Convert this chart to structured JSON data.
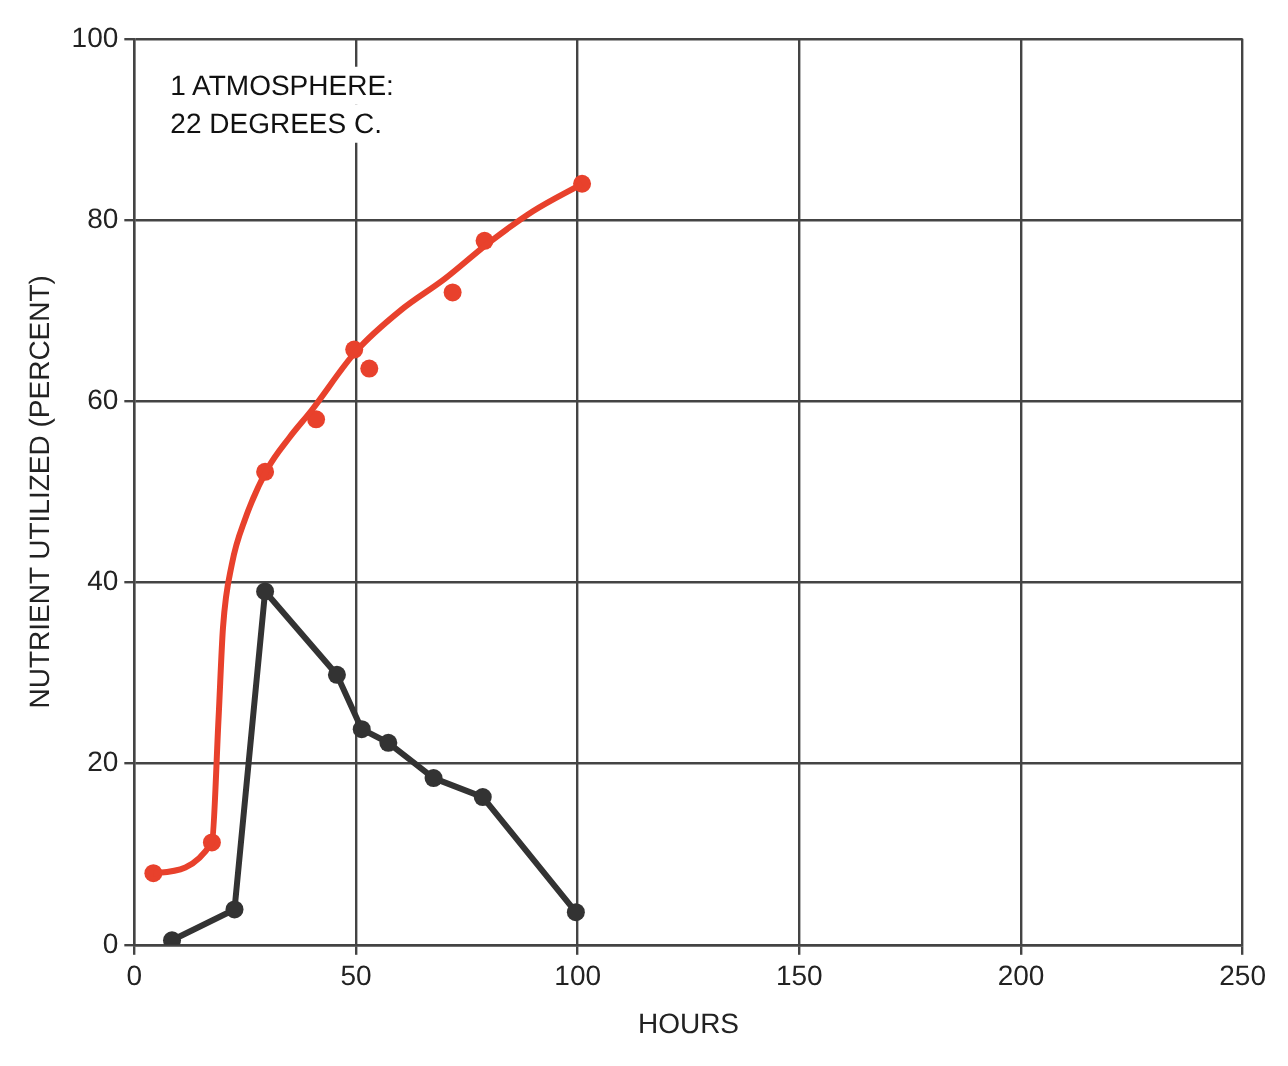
{
  "chart_data": {
    "type": "line",
    "xlabel": "HOURS",
    "ylabel": "NUTRIENT UTILIZED (PERCENT)",
    "annotations": [
      "1 ATMOSPHERE:",
      "22 DEGREES C."
    ],
    "xlim": [
      0,
      250
    ],
    "xticks": [
      0,
      50,
      100,
      150,
      200,
      250
    ],
    "ylim": [
      0,
      100
    ],
    "yticks": [
      0,
      20,
      40,
      60,
      80,
      100
    ],
    "grid": true,
    "legend": false,
    "marker": "circle",
    "line_style": "solid",
    "series": [
      {
        "type": "line",
        "color": "#e8412c",
        "marker": "none",
        "x": [
          4.3,
          17.5,
          19,
          20,
          22,
          25,
          30,
          35,
          40,
          50,
          60,
          70,
          80,
          90,
          101
        ],
        "values": [
          7.9,
          11.3,
          25,
          35,
          42,
          47,
          52.5,
          56,
          59,
          65.5,
          70,
          73.5,
          77.5,
          81,
          84
        ]
      },
      {
        "type": "scatter",
        "color": "#e8412c",
        "x": [
          4.3,
          17.5,
          29.5,
          41,
          49.6,
          53,
          71.8,
          79,
          101
        ],
        "values": [
          7.9,
          11.3,
          52.2,
          58,
          65.7,
          63.6,
          72,
          77.7,
          84
        ]
      },
      {
        "type": "line",
        "color": "#333333",
        "x": [
          8.5,
          22.6,
          29.5,
          45.7,
          51.3,
          57.3,
          67.5,
          78.6,
          99.6
        ],
        "values": [
          0.5,
          3.9,
          39,
          29.8,
          23.8,
          22.3,
          18.4,
          16.3,
          3.6
        ]
      }
    ]
  }
}
